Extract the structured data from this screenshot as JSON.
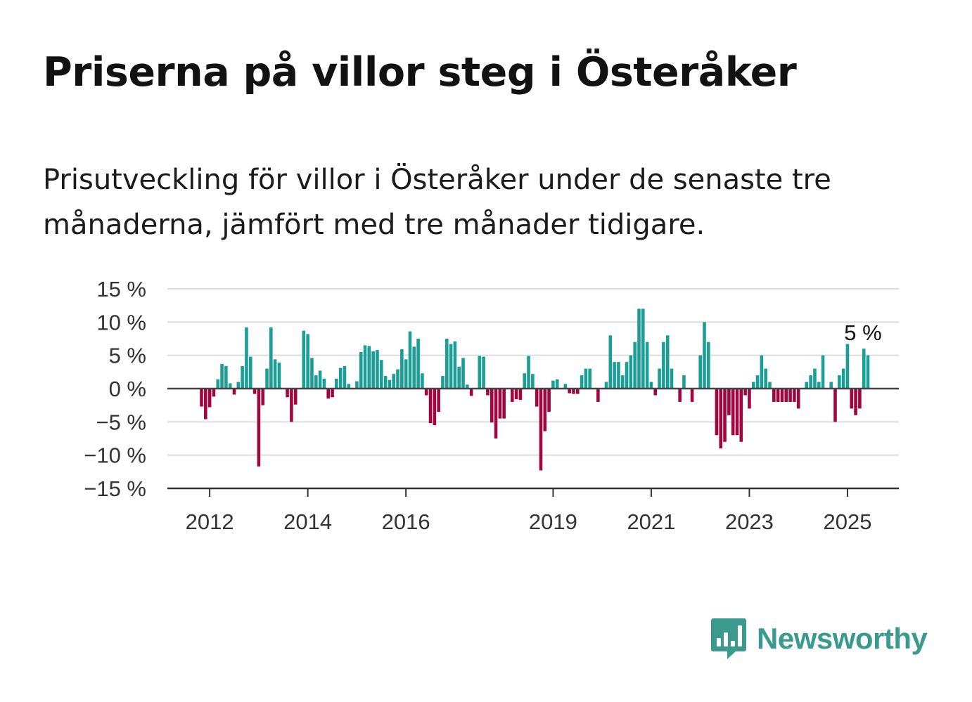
{
  "title": "Priserna på villor steg i Österåker",
  "subtitle": "Prisutveckling för villor i Österåker under de senaste tre månaderna, jämfört med tre månader tidigare.",
  "brand": {
    "name": "Newsworthy",
    "icon": "newsworthy-bar-chart-icon"
  },
  "colors": {
    "positive": "#1a9e96",
    "negative": "#a0063f",
    "grid": "#dcdcdc",
    "axis": "#333333"
  },
  "chart_data": {
    "type": "bar",
    "unit": "%",
    "ylim": [
      -15,
      15
    ],
    "yticks": [
      15,
      10,
      5,
      0,
      -5,
      -10,
      -15
    ],
    "ytick_labels": [
      "15 %",
      "10 %",
      "5 %",
      "0 %",
      "−5 %",
      "−10 %",
      "−15 %"
    ],
    "xticks": [
      {
        "label": "2012",
        "index": 2
      },
      {
        "label": "2014",
        "index": 26
      },
      {
        "label": "2016",
        "index": 50
      },
      {
        "label": "2019",
        "index": 86
      },
      {
        "label": "2021",
        "index": 110
      },
      {
        "label": "2023",
        "index": 134
      },
      {
        "label": "2025",
        "index": 158
      }
    ],
    "grid": true,
    "last_value_label": "5 %",
    "start": "2011-11",
    "frequency": "monthly",
    "values": [
      -2.7,
      -4.6,
      -2.8,
      -1.2,
      1.4,
      3.7,
      3.4,
      0.8,
      -0.9,
      1.0,
      3.4,
      9.2,
      4.8,
      -0.8,
      -11.7,
      -2.5,
      3.0,
      9.2,
      4.4,
      3.9,
      0.0,
      -1.3,
      -5.0,
      -2.4,
      0.0,
      8.7,
      8.2,
      4.6,
      2.0,
      2.7,
      1.5,
      -1.5,
      -1.3,
      1.5,
      3.1,
      3.4,
      0.7,
      0.0,
      1.1,
      5.5,
      6.5,
      6.4,
      5.6,
      5.8,
      4.3,
      1.9,
      1.3,
      2.2,
      2.9,
      5.9,
      4.4,
      8.6,
      6.3,
      7.5,
      2.3,
      -1.0,
      -5.2,
      -5.5,
      -3.5,
      1.9,
      7.5,
      6.7,
      7.1,
      3.3,
      4.6,
      0.6,
      -1.1,
      0.0,
      4.9,
      4.8,
      -1.0,
      -5.1,
      -7.5,
      -4.5,
      -4.5,
      0.0,
      -2.0,
      -1.6,
      -1.7,
      2.3,
      4.9,
      2.2,
      -2.7,
      -12.3,
      -6.4,
      -3.5,
      1.2,
      1.4,
      0.0,
      0.7,
      -0.7,
      -0.8,
      -0.8,
      2.0,
      3.0,
      3.0,
      0.0,
      -2.0,
      0.0,
      1.0,
      8.0,
      4.0,
      4.0,
      2.0,
      4.0,
      5.0,
      7.0,
      12.0,
      12.0,
      7.0,
      1.0,
      -1.0,
      3.0,
      7.0,
      8.0,
      3.0,
      0.0,
      -2.0,
      2.0,
      0.0,
      -2.0,
      0.0,
      5.0,
      10.0,
      7.0,
      0.0,
      -7.0,
      -9.0,
      -8.0,
      -4.0,
      -7.0,
      -7.0,
      -8.0,
      -1.0,
      -3.0,
      1.0,
      2.0,
      5.0,
      3.0,
      1.0,
      -2.0,
      -2.0,
      -2.0,
      -2.0,
      -2.0,
      -2.0,
      -3.0,
      0.0,
      1.0,
      2.0,
      3.0,
      1.0,
      5.0,
      0.0,
      1.0,
      -5.0,
      2.0,
      3.0,
      6.7,
      -3.0,
      -4.0,
      -3.0,
      6.0,
      5.0
    ]
  }
}
